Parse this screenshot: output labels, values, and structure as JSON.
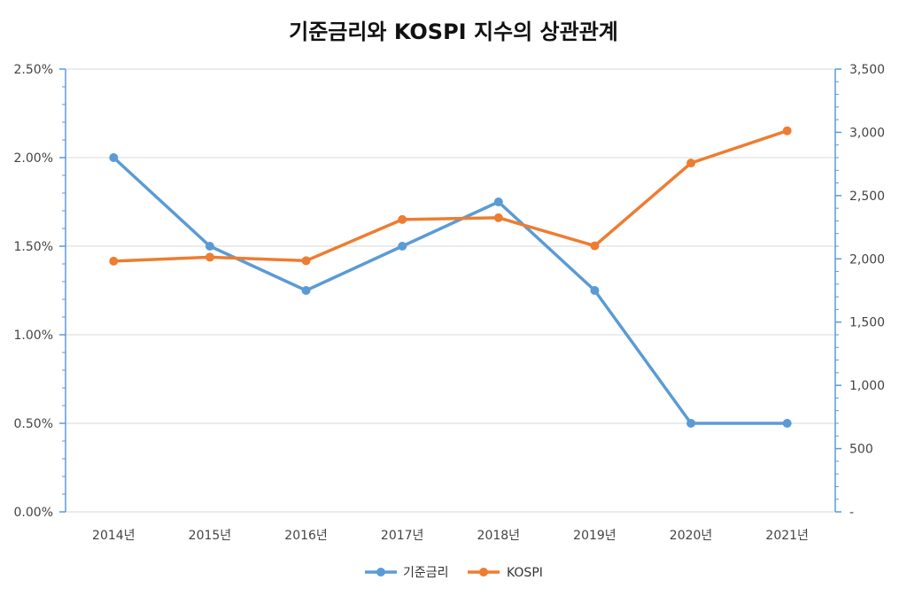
{
  "chart_data": {
    "type": "line",
    "title": "기준금리와 KOSPI 지수의 상관관계",
    "categories": [
      "2014년",
      "2015년",
      "2016년",
      "2017년",
      "2018년",
      "2019년",
      "2020년",
      "2021년"
    ],
    "series": [
      {
        "name": "기준금리",
        "axis": "left",
        "color": "#5B9BD5",
        "values": [
          2.0,
          1.5,
          1.25,
          1.5,
          1.75,
          1.25,
          0.5,
          0.5
        ]
      },
      {
        "name": "KOSPI",
        "axis": "right",
        "color": "#ED7D31",
        "values": [
          1982,
          2013,
          1985,
          2311,
          2325,
          2103,
          2757,
          3012
        ]
      }
    ],
    "y_left": {
      "min": 0,
      "max": 2.5,
      "ticks": [
        "0.00%",
        "0.50%",
        "1.00%",
        "1.50%",
        "2.00%",
        "2.50%"
      ],
      "tick_values": [
        0,
        0.5,
        1.0,
        1.5,
        2.0,
        2.5
      ]
    },
    "y_right": {
      "min": 0,
      "max": 3500,
      "ticks": [
        "-",
        "500",
        "1,000",
        "1,500",
        "2,000",
        "2,500",
        "3,000",
        "3,500"
      ],
      "tick_values": [
        0,
        500,
        1000,
        1500,
        2000,
        2500,
        3000,
        3500
      ]
    },
    "grid": true,
    "legend_position": "bottom"
  },
  "colors": {
    "axis": "#5B9BD5",
    "grid": "#D9D9D9"
  }
}
